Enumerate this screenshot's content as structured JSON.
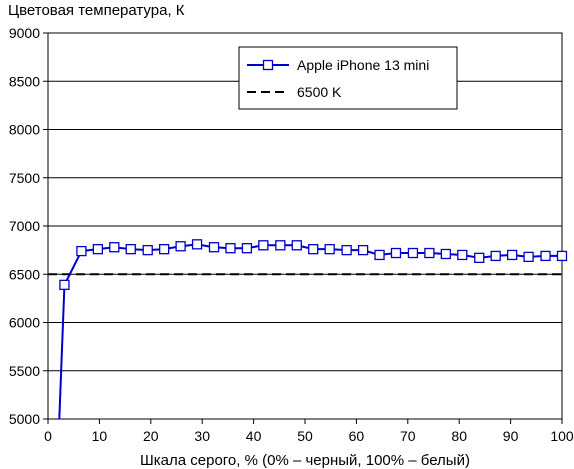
{
  "chart_data": {
    "type": "line",
    "title": "",
    "ylabel": "Цветовая температура, К",
    "xlabel": "Шкала серого, % (0% – черный, 100% – белый)",
    "xlim": [
      0,
      100
    ],
    "ylim": [
      5000,
      9000
    ],
    "x_ticks": [
      0,
      10,
      20,
      30,
      40,
      50,
      60,
      70,
      80,
      90,
      100
    ],
    "y_ticks": [
      5000,
      5500,
      6000,
      6500,
      7000,
      7500,
      8000,
      8500,
      9000
    ],
    "grid": {
      "horizontal": true,
      "vertical": false
    },
    "legend": {
      "position": "top-right"
    },
    "series": [
      {
        "name": "Apple iPhone 13 mini",
        "color": "#0000cc",
        "marker": "square",
        "leading_x": [
          2.2
        ],
        "leading_y": [
          5000
        ],
        "x": [
          3.2,
          6.5,
          9.7,
          12.9,
          16.1,
          19.4,
          22.6,
          25.8,
          29.0,
          32.3,
          35.5,
          38.7,
          41.9,
          45.2,
          48.4,
          51.6,
          54.8,
          58.1,
          61.3,
          64.5,
          67.7,
          71.0,
          74.2,
          77.4,
          80.6,
          83.9,
          87.1,
          90.3,
          93.5,
          96.8,
          100.0
        ],
        "values": [
          6390,
          6740,
          6760,
          6780,
          6760,
          6750,
          6760,
          6790,
          6810,
          6780,
          6770,
          6770,
          6800,
          6800,
          6800,
          6760,
          6760,
          6750,
          6750,
          6700,
          6720,
          6720,
          6720,
          6710,
          6700,
          6670,
          6690,
          6700,
          6680,
          6690,
          6690
        ]
      },
      {
        "name": "6500 K",
        "color": "#000000",
        "dash": true,
        "x": [
          0,
          100
        ],
        "values": [
          6500,
          6500
        ]
      }
    ]
  }
}
